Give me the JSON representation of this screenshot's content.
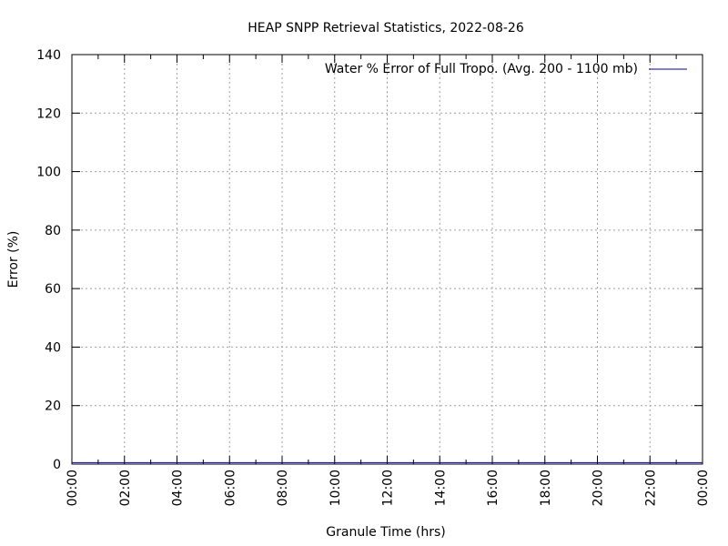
{
  "chart_data": {
    "type": "line",
    "title": "HEAP SNPP Retrieval Statistics, 2022-08-26",
    "xlabel": "Granule Time (hrs)",
    "ylabel": "Error (%)",
    "xlim": [
      "00:00",
      "24:00"
    ],
    "ylim": [
      0,
      140
    ],
    "x_ticks": [
      "00:00",
      "02:00",
      "04:00",
      "06:00",
      "08:00",
      "10:00",
      "12:00",
      "14:00",
      "16:00",
      "18:00",
      "20:00",
      "22:00",
      "00:00"
    ],
    "y_ticks": [
      0,
      20,
      40,
      60,
      80,
      100,
      120,
      140
    ],
    "grid": true,
    "legend_position": "top-right",
    "series": [
      {
        "name": "Water % Error of Full Tropo. (Avg. 200 - 1100 mb)",
        "color": "#0000a0",
        "x": [
          "00:00",
          "24:00"
        ],
        "values": [
          0.5,
          0.5
        ]
      }
    ]
  }
}
